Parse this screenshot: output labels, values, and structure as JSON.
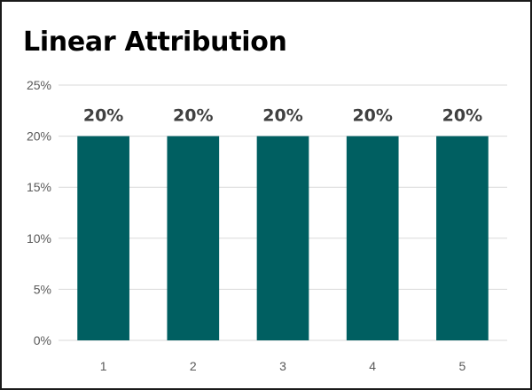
{
  "chart_data": {
    "type": "bar",
    "title": "Linear Attribution",
    "xlabel": "",
    "ylabel": "",
    "categories": [
      "1",
      "2",
      "3",
      "4",
      "5"
    ],
    "values": [
      20,
      20,
      20,
      20,
      20
    ],
    "data_labels": [
      "20%",
      "20%",
      "20%",
      "20%",
      "20%"
    ],
    "ylim": [
      0,
      25
    ],
    "yticks": [
      0,
      5,
      10,
      15,
      20,
      25
    ],
    "ytick_labels": [
      "0%",
      "5%",
      "10%",
      "15%",
      "20%",
      "25%"
    ],
    "grid": true,
    "legend": "none",
    "bar_color": "#005F61"
  }
}
